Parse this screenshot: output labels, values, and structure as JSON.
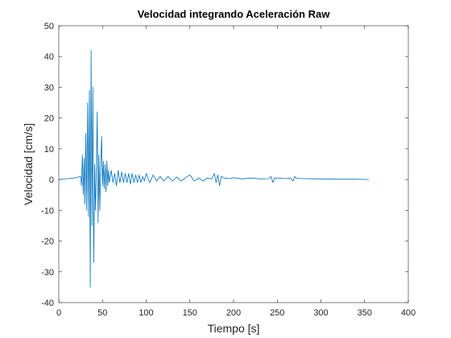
{
  "chart_data": {
    "type": "line",
    "title": "Velocidad integrando Aceleración Raw",
    "xlabel": "Tiempo [s]",
    "ylabel": "Velocidad [cm/s]",
    "xlim": [
      0,
      400
    ],
    "ylim": [
      -40,
      50
    ],
    "xticks": [
      0,
      50,
      100,
      150,
      200,
      250,
      300,
      350,
      400
    ],
    "yticks": [
      -40,
      -30,
      -20,
      -10,
      0,
      10,
      20,
      30,
      40,
      50
    ],
    "grid": false,
    "line_color": "#0072BD",
    "series": [
      {
        "x": [
          0,
          10,
          20,
          25,
          26,
          27,
          28,
          29,
          30,
          31,
          32,
          33,
          34,
          35,
          36,
          37,
          38,
          39,
          40,
          41,
          42,
          43,
          44,
          45,
          46,
          47,
          48,
          49,
          50,
          51,
          52,
          53,
          54,
          55,
          56,
          57,
          58,
          60,
          62,
          64,
          66,
          68,
          70,
          72,
          74,
          76,
          78,
          80,
          82,
          84,
          86,
          88,
          90,
          92,
          94,
          96,
          98,
          100,
          104,
          108,
          112,
          116,
          120,
          125,
          130,
          135,
          140,
          145,
          150,
          155,
          160,
          165,
          170,
          175,
          178,
          180,
          182,
          184,
          186,
          190,
          195,
          200,
          210,
          220,
          230,
          240,
          243,
          245,
          247,
          250,
          260,
          265,
          268,
          270,
          272,
          280,
          300,
          320,
          340,
          355
        ],
        "y": [
          0,
          0.3,
          0.6,
          1,
          -2,
          8,
          -5,
          7,
          -8,
          15,
          -10,
          25,
          -12,
          29,
          -35,
          42,
          -15,
          30,
          -27,
          5,
          -10,
          3,
          22,
          -14,
          8,
          -10,
          5,
          14,
          -2,
          6,
          -3,
          5,
          -4,
          6,
          -2,
          3,
          -1,
          3,
          -1,
          2,
          -2,
          3,
          -1,
          2.5,
          -1,
          2,
          -1,
          2,
          -1.5,
          2,
          -1,
          1.5,
          -1,
          1.5,
          -1,
          1,
          -0.5,
          2,
          -1,
          1.5,
          -0.5,
          1,
          -0.5,
          1,
          -0.5,
          0.8,
          -0.5,
          0.6,
          1.5,
          -0.5,
          0.5,
          -0.5,
          0.5,
          0.2,
          2,
          -1,
          1.5,
          -2,
          1,
          0.5,
          0.3,
          0.6,
          0.2,
          0.5,
          0.2,
          0.3,
          1,
          -1,
          0.5,
          0.5,
          0.3,
          0.5,
          -0.5,
          1,
          0.4,
          0.3,
          0.2,
          0.1,
          0.1,
          0
        ]
      }
    ]
  }
}
